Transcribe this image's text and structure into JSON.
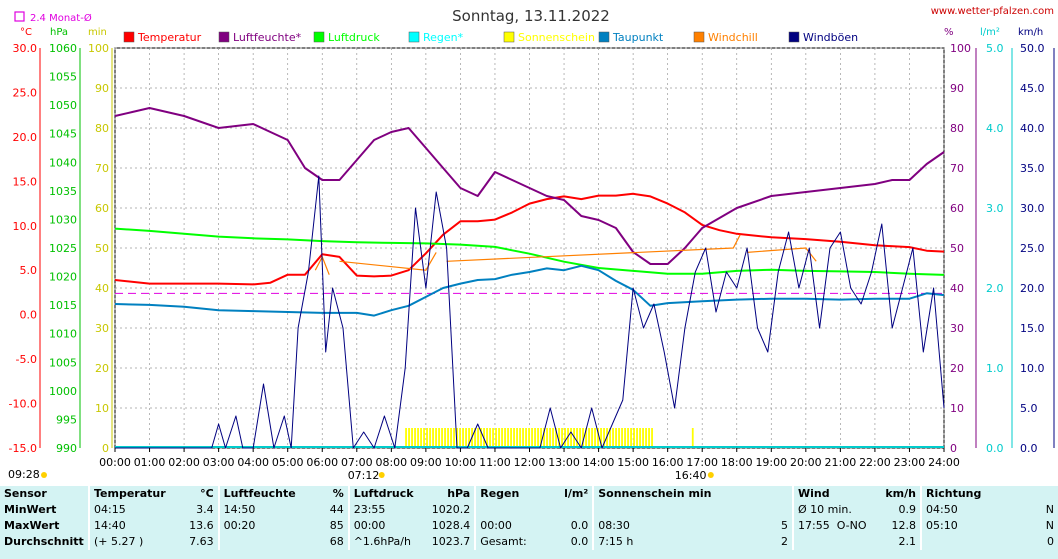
{
  "header": {
    "title": "Sonntag, 13.11.2022",
    "site": "www.wetter-pfalzen.com",
    "monthly_avg_label": "2.4 Monat-Ø"
  },
  "axes": {
    "temp_unit": "°C",
    "pressure_unit": "hPa",
    "min_unit": "min",
    "humidity_unit": "%",
    "rain_unit": "l/m²",
    "wind_unit": "km/h",
    "temp_ticks": [
      "30.0",
      "25.0",
      "20.0",
      "15.0",
      "10.0",
      "5.0",
      "0.0",
      "-5.0",
      "-10.0",
      "-15.0"
    ],
    "pressure_ticks": [
      "1060",
      "1055",
      "1050",
      "1045",
      "1040",
      "1035",
      "1030",
      "1025",
      "1020",
      "1015",
      "1010",
      "1005",
      "1000",
      "995",
      "990"
    ],
    "min_ticks": [
      "100",
      "90",
      "80",
      "70",
      "60",
      "50",
      "40",
      "30",
      "20",
      "10",
      "0"
    ],
    "humidity_ticks": [
      "100",
      "90",
      "80",
      "70",
      "60",
      "50",
      "40",
      "30",
      "20",
      "10",
      "0"
    ],
    "rain_ticks": [
      "5.0",
      "4.0",
      "3.0",
      "2.0",
      "1.0",
      "0.0"
    ],
    "wind_ticks": [
      "50.0",
      "45.0",
      "40.0",
      "35.0",
      "30.0",
      "25.0",
      "20.0",
      "15.0",
      "10.0",
      "5.0",
      "0.0"
    ],
    "time_ticks": [
      "00:00",
      "01:00",
      "02:00",
      "03:00",
      "04:00",
      "05:00",
      "06:00",
      "07:00",
      "08:00",
      "09:00",
      "10:00",
      "11:00",
      "12:00",
      "13:00",
      "14:00",
      "15:00",
      "16:00",
      "17:00",
      "18:00",
      "19:00",
      "20:00",
      "21:00",
      "22:00",
      "23:00",
      "24:00"
    ],
    "sunrise": "07:12",
    "sunset": "16:40",
    "time_left": "09:28"
  },
  "legend": [
    {
      "name": "Temperatur",
      "color": "#ff0000"
    },
    {
      "name": "Luftfeuchte*",
      "color": "#800080"
    },
    {
      "name": "Luftdruck",
      "color": "#00ff00"
    },
    {
      "name": "Regen*",
      "color": "#00ffff"
    },
    {
      "name": "Sonnenschein",
      "color": "#ffff00"
    },
    {
      "name": "Taupunkt",
      "color": "#0080c0"
    },
    {
      "name": "Windchill",
      "color": "#ff8000"
    },
    {
      "name": "Windböen",
      "color": "#000080"
    }
  ],
  "chart_data": {
    "type": "line",
    "title": "Sonntag, 13.11.2022",
    "x_range_hours": [
      0,
      24
    ],
    "temperature_range": [
      -15,
      30
    ],
    "monthly_avg_temp": 2.4,
    "series": [
      {
        "name": "Temperatur",
        "axis": "°C",
        "color": "#ff0000",
        "x": [
          0,
          1,
          2,
          3,
          4,
          4.5,
          5,
          5.5,
          6,
          6.5,
          7,
          7.5,
          8,
          8.5,
          9,
          9.5,
          10,
          10.5,
          11,
          11.5,
          12,
          12.5,
          13,
          13.5,
          14,
          14.5,
          15,
          15.5,
          16,
          16.5,
          17,
          17.5,
          18,
          19,
          20,
          21,
          22,
          23,
          23.5,
          24
        ],
        "y": [
          3.9,
          3.5,
          3.5,
          3.5,
          3.4,
          3.6,
          4.5,
          4.5,
          6.8,
          6.5,
          4.4,
          4.3,
          4.4,
          5.0,
          6.9,
          9.0,
          10.5,
          10.5,
          10.7,
          11.5,
          12.5,
          13.0,
          13.3,
          13.0,
          13.4,
          13.4,
          13.6,
          13.3,
          12.5,
          11.5,
          10.1,
          9.5,
          9.1,
          8.7,
          8.5,
          8.2,
          7.8,
          7.6,
          7.2,
          7.1
        ]
      },
      {
        "name": "Luftfeuchte*",
        "axis": "%",
        "color": "#800080",
        "x": [
          0,
          0.5,
          1,
          2,
          3,
          4,
          4.5,
          5,
          5.5,
          6,
          6.5,
          7,
          7.5,
          8,
          8.5,
          9,
          9.5,
          10,
          10.5,
          11,
          11.5,
          12,
          12.5,
          13,
          13.5,
          14,
          14.5,
          15,
          15.5,
          16,
          16.5,
          17,
          18,
          19,
          20,
          21,
          22,
          22.5,
          23,
          23.5,
          24
        ],
        "y": [
          83,
          84,
          85,
          83,
          80,
          81,
          79,
          77,
          70,
          67,
          67,
          72,
          77,
          79,
          80,
          75,
          70,
          65,
          63,
          69,
          67,
          65,
          63,
          62,
          58,
          57,
          55,
          49,
          46,
          46,
          50,
          55,
          60,
          63,
          64,
          65,
          66,
          67,
          67,
          71,
          74
        ]
      },
      {
        "name": "Luftdruck",
        "axis": "hPa",
        "color": "#00ff00",
        "x": [
          0,
          1,
          2,
          3,
          4,
          5,
          6,
          7,
          8,
          9,
          10,
          11,
          12,
          13,
          14,
          15,
          16,
          17,
          18,
          19,
          20,
          21,
          22,
          23,
          24
        ],
        "y": [
          1028.4,
          1028.0,
          1027.5,
          1027.0,
          1026.7,
          1026.5,
          1026.2,
          1026.0,
          1025.9,
          1025.8,
          1025.6,
          1025.2,
          1024.0,
          1022.6,
          1021.5,
          1021.0,
          1020.5,
          1020.5,
          1021.0,
          1021.2,
          1021.0,
          1020.9,
          1020.8,
          1020.5,
          1020.3
        ]
      },
      {
        "name": "Taupunkt",
        "axis": "°C",
        "color": "#0080c0",
        "x": [
          0,
          1,
          2,
          3,
          4,
          5,
          6,
          7,
          7.5,
          8,
          8.5,
          9,
          9.5,
          10,
          10.5,
          11,
          11.5,
          12,
          12.5,
          13,
          13.5,
          14,
          14.5,
          15,
          15.5,
          16,
          17,
          18,
          19,
          20,
          21,
          22,
          23,
          23.5,
          24
        ],
        "y": [
          1.2,
          1.1,
          0.9,
          0.5,
          0.4,
          0.3,
          0.2,
          0.2,
          -0.1,
          0.5,
          1.0,
          2.0,
          3.0,
          3.5,
          3.9,
          4.0,
          4.5,
          4.8,
          5.2,
          5.0,
          5.5,
          5.0,
          3.8,
          2.8,
          1.0,
          1.3,
          1.5,
          1.7,
          1.8,
          1.8,
          1.7,
          1.8,
          1.8,
          2.4,
          2.2
        ]
      },
      {
        "name": "Windchill",
        "axis": "°C",
        "color": "#ff8000",
        "x": [
          5.8,
          6.0,
          6.2,
          6.5,
          9.0,
          9.3,
          9.6,
          17.9,
          18.1,
          18.3,
          20.0,
          20.3,
          20.5
        ],
        "y": [
          5.0,
          6.5,
          4.5,
          6.0,
          5.0,
          7.0,
          6.0,
          7.5,
          9.0,
          7.0,
          7.5,
          6.0,
          7.0
        ]
      },
      {
        "name": "Windböen",
        "axis": "km/h",
        "color": "#000080",
        "x": [
          0,
          1,
          2,
          2.8,
          3.0,
          3.2,
          3.5,
          3.7,
          4.0,
          4.3,
          4.6,
          4.9,
          5.1,
          5.3,
          5.6,
          5.9,
          6.1,
          6.3,
          6.6,
          6.9,
          7.2,
          7.5,
          7.8,
          8.1,
          8.4,
          8.7,
          9.0,
          9.3,
          9.6,
          9.9,
          10.2,
          10.5,
          10.8,
          11.1,
          11.4,
          11.7,
          12.0,
          12.3,
          12.6,
          12.9,
          13.2,
          13.5,
          13.8,
          14.1,
          14.4,
          14.7,
          15.0,
          15.3,
          15.6,
          15.9,
          16.2,
          16.5,
          16.8,
          17.1,
          17.4,
          17.7,
          18.0,
          18.3,
          18.6,
          18.9,
          19.2,
          19.5,
          19.8,
          20.1,
          20.4,
          20.7,
          21.0,
          21.3,
          21.6,
          21.9,
          22.2,
          22.5,
          22.8,
          23.1,
          23.4,
          23.7,
          24.0
        ],
        "y": [
          0,
          0,
          0,
          0,
          3,
          0,
          4,
          0,
          0,
          8,
          0,
          4,
          0,
          15,
          22,
          34,
          12,
          20,
          15,
          0,
          2,
          0,
          4,
          0,
          10,
          30,
          20,
          32,
          25,
          0,
          0,
          3,
          0,
          0,
          0,
          0,
          0,
          0,
          5,
          0,
          2,
          0,
          5,
          0,
          3,
          6,
          20,
          15,
          18,
          12,
          5,
          15,
          22,
          25,
          17,
          22,
          20,
          25,
          15,
          12,
          22,
          27,
          20,
          25,
          15,
          25,
          27,
          20,
          18,
          22,
          28,
          15,
          20,
          25,
          12,
          20,
          5
        ]
      }
    ],
    "sunshine_intervals": [
      [
        8.4,
        15.6
      ],
      [
        16.7,
        16.75
      ]
    ],
    "rain": 0.0
  },
  "stats": {
    "headers": {
      "sensor": "Sensor",
      "temp": "Temperatur",
      "temp_unit": "°C",
      "hum": "Luftfeuchte",
      "hum_unit": "%",
      "press": "Luftdruck",
      "press_unit": "hPa",
      "rain": "Regen",
      "rain_unit": "l/m²",
      "sun": "Sonnenschein min",
      "wind": "Wind",
      "wind_unit": "km/h",
      "dir": "Richtung"
    },
    "rows": [
      {
        "label": "MinWert",
        "t_time": "04:15",
        "t_val": "3.4",
        "h_time": "14:50",
        "h_val": "44",
        "p_time": "23:55",
        "p_val": "1020.2",
        "r_time": "",
        "r_val": "",
        "s_time": "",
        "s_val": "",
        "w_label": "Ø 10 min.",
        "w_val": "0.9",
        "d_time": "04:50",
        "d_val": "N"
      },
      {
        "label": "MaxWert",
        "t_time": "14:40",
        "t_val": "13.6",
        "h_time": "00:20",
        "h_val": "85",
        "p_time": "00:00",
        "p_val": "1028.4",
        "r_time": "00:00",
        "r_val": "0.0",
        "s_time": "08:30",
        "s_val": "5",
        "w_label": "17:55",
        "w_dir": "O-NO",
        "w_val": "12.8",
        "d_time": "05:10",
        "d_val": "N"
      },
      {
        "label": "Durchschnitt",
        "t_time": "(+ 5.27 )",
        "t_val": "7.63",
        "h_time": "",
        "h_val": "68",
        "p_time": "^1.6hPa/h",
        "p_val": "1023.7",
        "r_time": "Gesamt:",
        "r_val": "0.0",
        "s_time": "7:15 h",
        "s_val": "2",
        "w_label": "",
        "w_val": "2.1",
        "d_time": "",
        "d_val": "0"
      }
    ]
  }
}
